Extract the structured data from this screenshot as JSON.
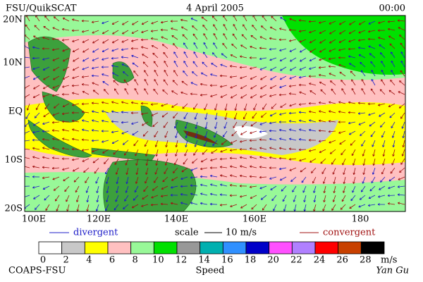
{
  "header": {
    "source": "FSU/QuikSCAT",
    "date": "4 April 2005",
    "time": "00:00"
  },
  "lat_labels": [
    "20N",
    "10N",
    "EQ",
    "10S",
    "20S"
  ],
  "lon_labels": [
    "100E",
    "120E",
    "140E",
    "160E",
    "180"
  ],
  "legend": {
    "divergent": "divergent",
    "scale": "scale",
    "scale_value": "10 m/s",
    "convergent": "convergent"
  },
  "colorbar": {
    "values": [
      0,
      2,
      4,
      6,
      8,
      10,
      12,
      14,
      16,
      18,
      20,
      22,
      24,
      26,
      28
    ],
    "colors": [
      "#ffffff",
      "#c8c8c8",
      "#ffff00",
      "#ffc0c0",
      "#98f898",
      "#00e000",
      "#989898",
      "#00b0b0",
      "#3090ff",
      "#0000c8",
      "#ff50ff",
      "#b080ff",
      "#ff0000",
      "#c84000",
      "#000000"
    ],
    "unit": "m/s",
    "label": "Speed"
  },
  "footer": {
    "left": "COAPS-FSU",
    "right": "Yan Gu"
  }
}
